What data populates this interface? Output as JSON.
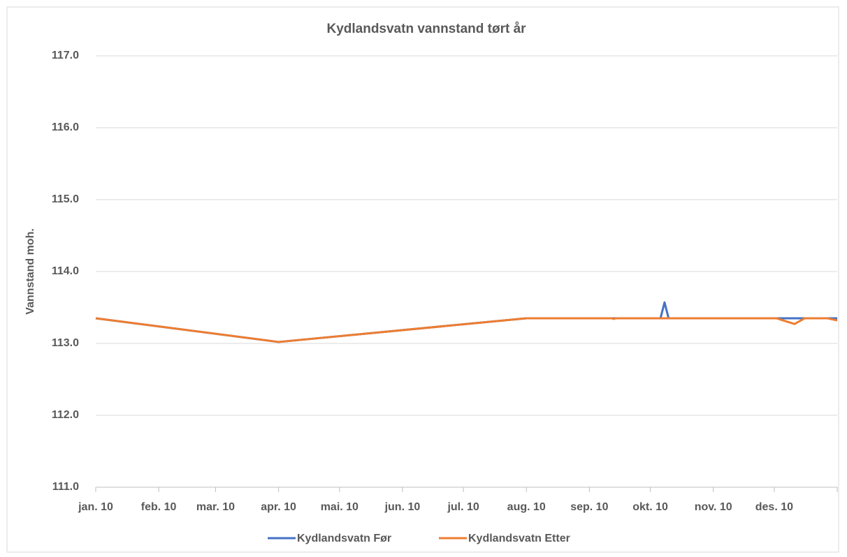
{
  "chart_data": {
    "type": "line",
    "title": "Kydlandsvatn vannstand tørt år",
    "y_label": "Vannstand moh.",
    "xlim": [
      0,
      365
    ],
    "xticks": [
      {
        "value": 0,
        "label": "jan. 10"
      },
      {
        "value": 31,
        "label": "feb. 10"
      },
      {
        "value": 59,
        "label": "mar. 10"
      },
      {
        "value": 90,
        "label": "apr. 10"
      },
      {
        "value": 120,
        "label": "mai. 10"
      },
      {
        "value": 151,
        "label": "jun. 10"
      },
      {
        "value": 181,
        "label": "jul. 10"
      },
      {
        "value": 212,
        "label": "aug. 10"
      },
      {
        "value": 243,
        "label": "sep. 10"
      },
      {
        "value": 273,
        "label": "okt. 10"
      },
      {
        "value": 304,
        "label": "nov. 10"
      },
      {
        "value": 334,
        "label": "des. 10"
      }
    ],
    "ylim": [
      111,
      117
    ],
    "yticks": [
      {
        "value": 111,
        "label": "111.0"
      },
      {
        "value": 112,
        "label": "112.0"
      },
      {
        "value": 113,
        "label": "113.0"
      },
      {
        "value": 114,
        "label": "114.0"
      },
      {
        "value": 115,
        "label": "115.0"
      },
      {
        "value": 116,
        "label": "116.0"
      },
      {
        "value": 117,
        "label": "117.0"
      }
    ],
    "grid": true,
    "legend": "bottom",
    "series": [
      {
        "name": "Kydlandsvatn Før",
        "color": "#4472c4",
        "x": [
          0,
          90,
          212,
          278,
          280,
          282,
          365
        ],
        "values": [
          113.35,
          113.02,
          113.35,
          113.35,
          113.57,
          113.35,
          113.35
        ]
      },
      {
        "name": "Kydlandsvatn Etter",
        "color": "#ed7d31",
        "x": [
          0,
          90,
          212,
          254,
          255,
          256,
          335,
          344,
          349,
          360,
          365
        ],
        "values": [
          113.35,
          113.02,
          113.35,
          113.35,
          113.34,
          113.35,
          113.35,
          113.27,
          113.35,
          113.35,
          113.32
        ]
      }
    ]
  }
}
